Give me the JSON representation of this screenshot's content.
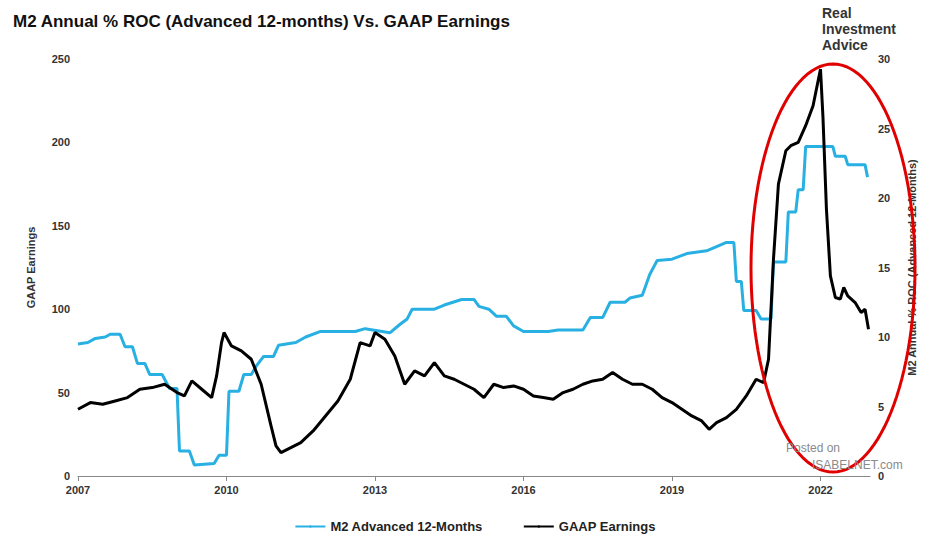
{
  "chart_data": {
    "type": "line",
    "title": "M2 Annual % ROC (Advanced 12-months) Vs. GAAP Earnings",
    "y_label": "GAAP Earnings",
    "y2_label": "M2 Annual % ROC (Advanced 12-Months)",
    "xlim": [
      2007,
      2023
    ],
    "xticks": [
      2007,
      2010,
      2013,
      2016,
      2019,
      2022
    ],
    "ylim": [
      0,
      250
    ],
    "yticks": [
      0,
      50,
      100,
      150,
      200,
      250
    ],
    "y2lim": [
      0,
      30
    ],
    "y2ticks": [
      0,
      5,
      10,
      15,
      20,
      25,
      30
    ],
    "grid": false,
    "legend": "bottom",
    "annotations": [
      "Real",
      "Investment",
      "Advice",
      "Posted on",
      "ISABELNET.com"
    ],
    "series": [
      {
        "name": "M2 Advanced 12-Months",
        "color": "#29b0e3",
        "axis": "y2",
        "line_style": "solid",
        "x": [
          2007.0,
          2007.2,
          2007.35,
          2007.55,
          2007.65,
          2007.85,
          2007.95,
          2008.1,
          2008.2,
          2008.35,
          2008.45,
          2008.7,
          2008.85,
          2009.0,
          2009.05,
          2009.25,
          2009.35,
          2009.75,
          2009.85,
          2010.0,
          2010.05,
          2010.25,
          2010.35,
          2010.5,
          2010.6,
          2010.75,
          2010.95,
          2011.05,
          2011.4,
          2011.6,
          2011.9,
          2012.6,
          2012.8,
          2013.3,
          2013.5,
          2013.65,
          2013.75,
          2014.2,
          2014.4,
          2014.75,
          2015.0,
          2015.1,
          2015.3,
          2015.45,
          2015.65,
          2015.8,
          2016.0,
          2016.5,
          2016.7,
          2017.2,
          2017.35,
          2017.6,
          2017.75,
          2018.05,
          2018.15,
          2018.4,
          2018.55,
          2018.7,
          2019.0,
          2019.3,
          2019.7,
          2019.9,
          2020.1,
          2020.25,
          2020.3,
          2020.4,
          2020.45,
          2020.7,
          2020.8,
          2021.0,
          2021.05,
          2021.3,
          2021.35,
          2021.5,
          2021.55,
          2021.65,
          2021.7,
          2022.25,
          2022.3,
          2022.5,
          2022.55,
          2022.9,
          2022.95
        ],
        "values": [
          9.5,
          9.6,
          9.9,
          10.0,
          10.2,
          10.2,
          9.3,
          9.3,
          8.1,
          8.1,
          7.3,
          7.3,
          6.3,
          6.3,
          1.8,
          1.8,
          0.8,
          0.9,
          1.5,
          1.5,
          6.1,
          6.1,
          7.3,
          7.3,
          7.9,
          8.6,
          8.6,
          9.4,
          9.6,
          10.0,
          10.4,
          10.4,
          10.6,
          10.3,
          10.9,
          11.3,
          12.0,
          12.0,
          12.3,
          12.7,
          12.7,
          12.2,
          12.0,
          11.5,
          11.5,
          10.8,
          10.4,
          10.4,
          10.5,
          10.5,
          11.4,
          11.4,
          12.5,
          12.5,
          12.8,
          13.0,
          14.5,
          15.5,
          15.6,
          16.0,
          16.2,
          16.5,
          16.8,
          16.8,
          14.0,
          14.0,
          11.9,
          11.9,
          11.3,
          11.3,
          15.4,
          15.4,
          19.0,
          19.0,
          20.6,
          20.6,
          23.7,
          23.7,
          23.0,
          23.0,
          22.4,
          22.4,
          21.5
        ]
      },
      {
        "name": "GAAP Earnings",
        "color": "#000000",
        "axis": "y",
        "line_style": "solid",
        "x": [
          2007.0,
          2007.25,
          2007.5,
          2007.75,
          2008.0,
          2008.25,
          2008.5,
          2008.75,
          2009.0,
          2009.15,
          2009.3,
          2009.5,
          2009.7,
          2009.8,
          2009.9,
          2009.95,
          2010.1,
          2010.3,
          2010.5,
          2010.7,
          2010.9,
          2011.0,
          2011.1,
          2011.3,
          2011.5,
          2011.75,
          2012.0,
          2012.25,
          2012.5,
          2012.7,
          2012.9,
          2013.0,
          2013.2,
          2013.4,
          2013.6,
          2013.8,
          2014.0,
          2014.2,
          2014.4,
          2014.6,
          2014.8,
          2015.0,
          2015.2,
          2015.4,
          2015.6,
          2015.8,
          2016.0,
          2016.2,
          2016.4,
          2016.6,
          2016.8,
          2017.0,
          2017.2,
          2017.4,
          2017.6,
          2017.8,
          2018.0,
          2018.2,
          2018.4,
          2018.6,
          2018.8,
          2019.0,
          2019.2,
          2019.4,
          2019.6,
          2019.75,
          2019.9,
          2020.1,
          2020.3,
          2020.5,
          2020.7,
          2020.85,
          2020.95,
          2021.05,
          2021.15,
          2021.3,
          2021.4,
          2021.55,
          2021.7,
          2021.85,
          2022.0,
          2022.05,
          2022.12,
          2022.2,
          2022.3,
          2022.4,
          2022.47,
          2022.55,
          2022.7,
          2022.82,
          2022.9,
          2022.97
        ],
        "values": [
          40,
          44,
          43,
          45,
          47,
          52,
          53,
          55,
          50,
          48,
          57,
          52,
          47,
          60,
          80,
          86,
          78,
          75,
          70,
          55,
          30,
          18,
          14,
          17,
          20,
          27,
          36,
          45,
          58,
          80,
          78,
          86,
          82,
          72,
          55,
          63,
          60,
          68,
          60,
          58,
          55,
          52,
          47,
          55,
          53,
          54,
          52,
          48,
          47,
          46,
          50,
          52,
          55,
          57,
          58,
          62,
          58,
          55,
          55,
          52,
          47,
          44,
          40,
          36,
          33,
          28,
          32,
          35,
          40,
          48,
          58,
          56,
          70,
          130,
          175,
          195,
          198,
          200,
          210,
          222,
          244,
          215,
          160,
          120,
          107,
          106,
          113,
          108,
          104,
          98,
          100,
          88
        ]
      }
    ]
  }
}
